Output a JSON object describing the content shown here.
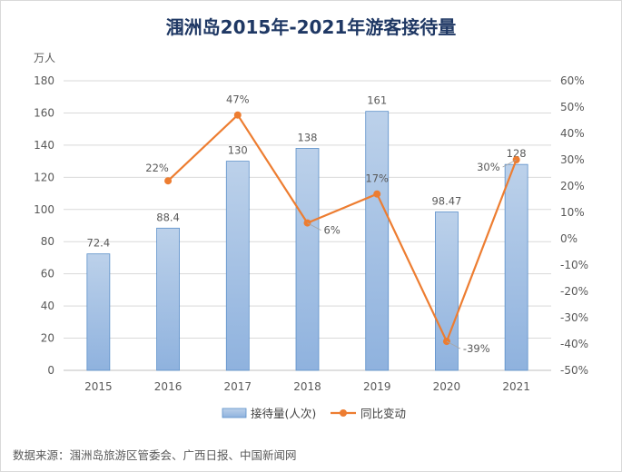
{
  "chart_data": {
    "type": "bar+line",
    "title": "涠洲岛2015年-2021年游客接待量",
    "categories": [
      "2015",
      "2016",
      "2017",
      "2018",
      "2019",
      "2020",
      "2021"
    ],
    "y_left_unit": "万人",
    "y_left_range": [
      0,
      180
    ],
    "y_left_ticks": [
      "0",
      "20",
      "40",
      "60",
      "80",
      "100",
      "120",
      "140",
      "160",
      "180"
    ],
    "y_right_range": [
      -50,
      60
    ],
    "y_right_ticks": [
      "-50%",
      "-40%",
      "-30%",
      "-20%",
      "-10%",
      "0%",
      "10%",
      "20%",
      "30%",
      "40%",
      "50%",
      "60%"
    ],
    "series": [
      {
        "name": "接待量(人次)",
        "type": "bar",
        "axis": "left",
        "values": [
          72.4,
          88.4,
          130,
          138,
          161,
          98.47,
          128
        ],
        "labels": [
          "72.4",
          "88.4",
          "130",
          "138",
          "161",
          "98.47",
          "128"
        ]
      },
      {
        "name": "同比变动",
        "type": "line",
        "axis": "right",
        "values": [
          null,
          22,
          47,
          6,
          17,
          -39,
          30
        ],
        "labels": [
          "",
          "22%",
          "47%",
          "6%",
          "17%",
          "-39%",
          "30%"
        ]
      }
    ],
    "legend": [
      "接待量(人次)",
      "同比变动"
    ],
    "colors": {
      "bar_top": "#bcd1ea",
      "bar_bottom": "#8fb2de",
      "bar_stroke": "#5b8fc9",
      "line": "#ed7d31"
    }
  },
  "source": "数据来源：涠洲岛旅游区管委会、广西日报、中国新闻网"
}
